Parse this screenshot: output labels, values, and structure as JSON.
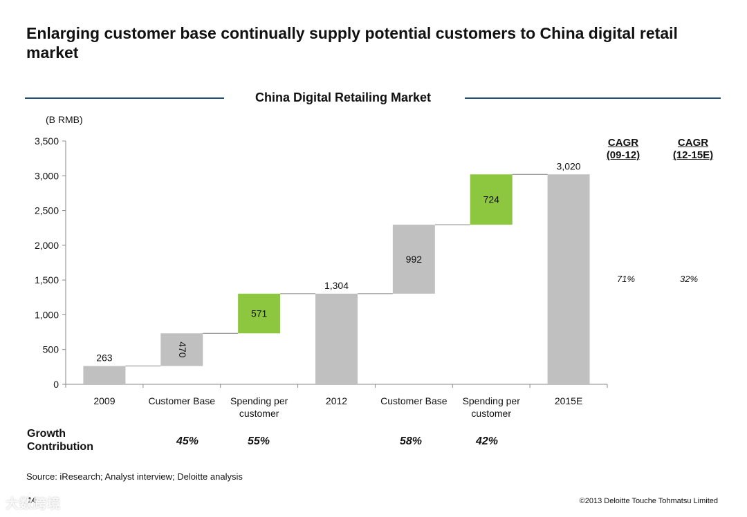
{
  "title": "Enlarging customer base continually supply potential customers to China digital retail market",
  "chart_title": "China Digital Retailing Market",
  "unit": "(B RMB)",
  "colors": {
    "gray": "#c0c0c0",
    "green": "#8dc63f",
    "title_line": "#1f4e79"
  },
  "chart_data": {
    "type": "bar",
    "subtype": "waterfall",
    "title": "China Digital Retailing Market",
    "ylabel": "(B RMB)",
    "ylim": [
      0,
      3500
    ],
    "yticks": [
      0,
      500,
      1000,
      1500,
      2000,
      2500,
      3000,
      3500
    ],
    "ytick_labels": [
      "0",
      "500",
      "1,000",
      "1,500",
      "2,000",
      "2,500",
      "3,000",
      "3,500"
    ],
    "categories": [
      [
        "2009"
      ],
      [
        "Customer Base"
      ],
      [
        "Spending per",
        "customer"
      ],
      [
        "2012"
      ],
      [
        "Customer Base"
      ],
      [
        "Spending per",
        "customer"
      ],
      [
        "2015E"
      ]
    ],
    "bars": [
      {
        "base": 0,
        "value": 263,
        "label": "263",
        "kind": "total",
        "label_pos": "above"
      },
      {
        "base": 263,
        "value": 470,
        "label": "470",
        "kind": "step",
        "label_pos": "inside-rotated"
      },
      {
        "base": 733,
        "value": 571,
        "label": "571",
        "kind": "highlight",
        "label_pos": "inside"
      },
      {
        "base": 0,
        "value": 1304,
        "label": "1,304",
        "kind": "total",
        "label_pos": "above"
      },
      {
        "base": 1304,
        "value": 992,
        "label": "992",
        "kind": "step",
        "label_pos": "inside"
      },
      {
        "base": 2296,
        "value": 724,
        "label": "724",
        "kind": "highlight",
        "label_pos": "inside"
      },
      {
        "base": 0,
        "value": 3020,
        "label": "3,020",
        "kind": "total",
        "label_pos": "above"
      }
    ],
    "connectors": [
      {
        "from": 0,
        "to": 1,
        "value": 263
      },
      {
        "from": 1,
        "to": 2,
        "value": 733
      },
      {
        "from": 2,
        "to": 3,
        "value": 1304
      },
      {
        "from": 3,
        "to": 4,
        "value": 1304
      },
      {
        "from": 4,
        "to": 5,
        "value": 2296
      },
      {
        "from": 5,
        "to": 6,
        "value": 3020
      }
    ]
  },
  "cagr": [
    {
      "line1": "CAGR",
      "line2": "(09-12)",
      "value": "71%"
    },
    {
      "line1": "CAGR",
      "line2": "(12-15E)",
      "value": "32%"
    }
  ],
  "growth": {
    "label_line1": "Growth",
    "label_line2": "Contribution",
    "values": [
      "45%",
      "55%",
      "58%",
      "42%"
    ]
  },
  "source": "Source: iResearch; Analyst interview; Deloitte analysis",
  "page_number": "14",
  "copyright": "©2013 Deloitte Touche Tohmatsu Limited",
  "watermark": "大数跨境"
}
